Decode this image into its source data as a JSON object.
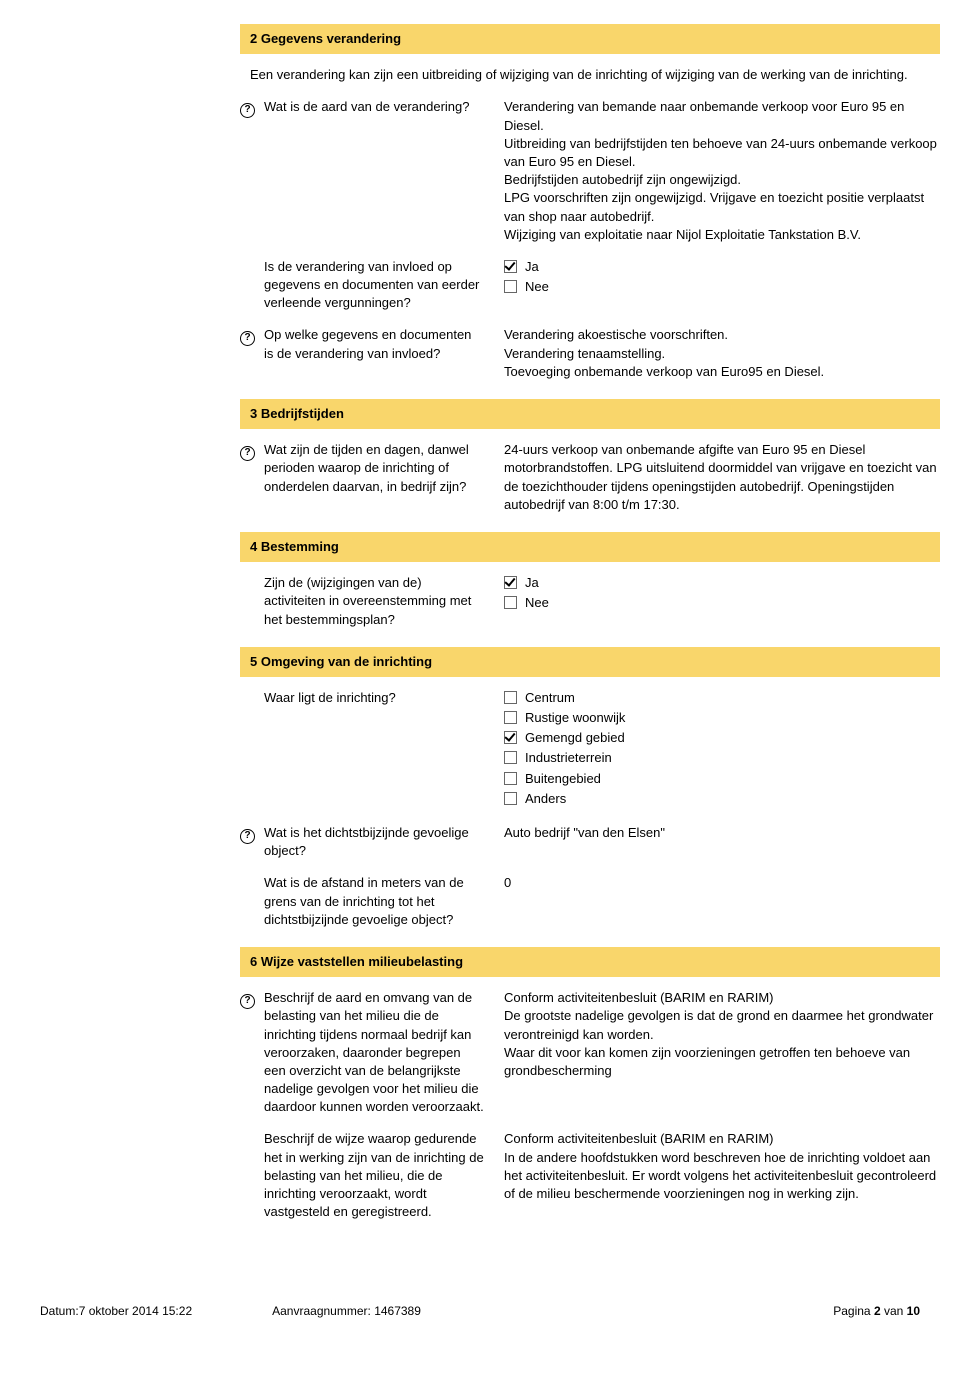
{
  "colors": {
    "heading_bg": "#f9d66b",
    "text": "#000000",
    "border": "#666666"
  },
  "sections": {
    "s2": {
      "title": "2 Gegevens verandering",
      "intro": "Een verandering kan zijn een uitbreiding of wijziging van de inrichting of wijziging van de werking van de inrichting.",
      "q1": {
        "label": "Wat is de aard van de verandering?",
        "answer": "Verandering van bemande naar onbemande verkoop voor Euro 95 en Diesel.\nUitbreiding van bedrijfstijden ten behoeve van 24-uurs onbemande verkoop van Euro 95 en Diesel.\nBedrijfstijden autobedrijf zijn ongewijzigd.\nLPG voorschriften zijn ongewijzigd. Vrijgave en toezicht positie verplaatst van shop naar autobedrijf.\nWijziging van exploitatie naar Nijol Exploitatie Tankstation B.V."
      },
      "q2": {
        "label": "Is de verandering van invloed op gegevens en documenten van eerder verleende vergunningen?",
        "opt_ja": "Ja",
        "opt_nee": "Nee"
      },
      "q3": {
        "label": "Op welke gegevens en documenten is de verandering van invloed?",
        "answer": "Verandering akoestische voorschriften.\nVerandering tenaamstelling.\nToevoeging onbemande verkoop van Euro95 en Diesel."
      }
    },
    "s3": {
      "title": "3 Bedrijfstijden",
      "q1": {
        "label": "Wat zijn de tijden en dagen, danwel perioden waarop de inrichting of onderdelen daarvan, in bedrijf zijn?",
        "answer": "24-uurs verkoop van onbemande afgifte van Euro 95 en Diesel motorbrandstoffen. LPG uitsluitend doormiddel van vrijgave en toezicht van de toezichthouder tijdens openingstijden autobedrijf. Openingstijden autobedrijf van 8:00 t/m 17:30."
      }
    },
    "s4": {
      "title": "4 Bestemming",
      "q1": {
        "label": "Zijn de (wijzigingen van de) activiteiten in overeenstemming met het bestemmingsplan?",
        "opt_ja": "Ja",
        "opt_nee": "Nee"
      }
    },
    "s5": {
      "title": "5 Omgeving van de inrichting",
      "q1": {
        "label": "Waar ligt de inrichting?",
        "opts": {
          "centrum": "Centrum",
          "rustige": "Rustige woonwijk",
          "gemengd": "Gemengd gebied",
          "industrie": "Industrieterrein",
          "buiten": "Buitengebied",
          "anders": "Anders"
        }
      },
      "q2": {
        "label": "Wat is het dichtstbijzijnde gevoelige object?",
        "answer": "Auto bedrijf \"van den Elsen\""
      },
      "q3": {
        "label": "Wat is de afstand in meters van de grens van de inrichting tot het dichtstbijzijnde gevoelige object?",
        "answer": "0"
      }
    },
    "s6": {
      "title": "6 Wijze vaststellen milieubelasting",
      "q1": {
        "label": "Beschrijf de aard en omvang van de belasting van het milieu die de inrichting tijdens normaal bedrijf kan veroorzaken, daaronder begrepen een overzicht van de belangrijkste nadelige gevolgen voor het milieu die daardoor kunnen worden veroorzaakt.",
        "answer": "Conform activiteitenbesluit (BARIM en RARIM)\nDe grootste nadelige gevolgen is dat de grond en daarmee het grondwater verontreinigd kan worden.\nWaar dit voor kan komen zijn voorzieningen getroffen ten behoeve van grondbescherming"
      },
      "q2": {
        "label": "Beschrijf de wijze waarop gedurende het in werking zijn van de inrichting de belasting van het milieu, die de inrichting veroorzaakt, wordt vastgesteld en geregistreerd.",
        "answer": "Conform activiteitenbesluit (BARIM en RARIM)\nIn de andere hoofdstukken word beschreven hoe de inrichting voldoet aan het activiteitenbesluit. Er wordt volgens het activiteitenbesluit gecontroleerd of de milieu beschermende voorzieningen nog in werking zijn."
      }
    }
  },
  "footer": {
    "date_label": "Datum:",
    "date_value": "7 oktober 2014 15:22",
    "req_label": "Aanvraagnummer:",
    "req_value": "1467389",
    "page_label_pre": "Pagina ",
    "page_current": "2",
    "page_label_mid": " van ",
    "page_total": "10"
  }
}
